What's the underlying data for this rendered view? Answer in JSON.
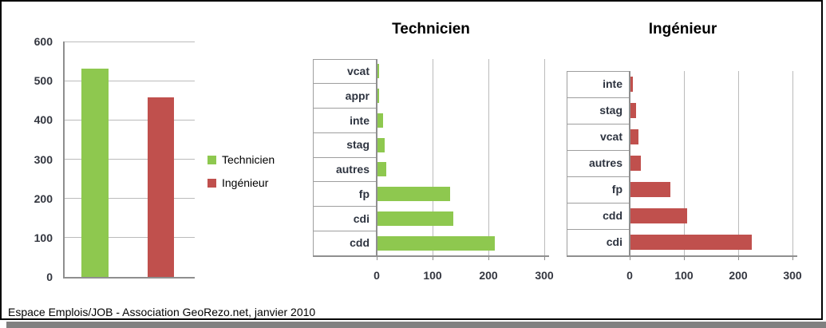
{
  "caption": "Espace Emplois/JOB - Association GeoRezo.net, janvier 2010",
  "colors": {
    "technicien_green": "#8ec84f",
    "ingenieur_red": "#c0504d",
    "gridline": "#bbbbbb",
    "axis": "#8f8f8f",
    "shadow": "#808080"
  },
  "legend": {
    "items": [
      {
        "label": "Technicien",
        "color": "#8ec84f"
      },
      {
        "label": "Ingénieur",
        "color": "#c0504d"
      }
    ]
  },
  "chart_data": [
    {
      "type": "bar",
      "orientation": "vertical",
      "title": "",
      "series": [
        {
          "name": "Technicien",
          "values": [
            530
          ],
          "color": "#8ec84f"
        },
        {
          "name": "Ingénieur",
          "values": [
            458
          ],
          "color": "#c0504d"
        }
      ],
      "ylim": [
        0,
        600
      ],
      "yticks": [
        0,
        100,
        200,
        300,
        400,
        500,
        600
      ],
      "grid": true,
      "legend_position": "right"
    },
    {
      "type": "bar",
      "orientation": "horizontal",
      "title": "Technicien",
      "categories": [
        "vcat",
        "appr",
        "inte",
        "stag",
        "autres",
        "fp",
        "cdi",
        "cdd"
      ],
      "values": [
        3,
        3,
        10,
        13,
        15,
        130,
        135,
        210
      ],
      "color": "#8ec84f",
      "xlim": [
        0,
        300
      ],
      "xticks": [
        0,
        100,
        200,
        300
      ],
      "grid": true
    },
    {
      "type": "bar",
      "orientation": "horizontal",
      "title": "Ingénieur",
      "categories": [
        "inte",
        "stag",
        "vcat",
        "autres",
        "fp",
        "cdd",
        "cdi"
      ],
      "values": [
        4,
        10,
        15,
        19,
        73,
        104,
        224
      ],
      "color": "#c0504d",
      "xlim": [
        0,
        300
      ],
      "xticks": [
        0,
        100,
        200,
        300
      ],
      "grid": true
    }
  ]
}
